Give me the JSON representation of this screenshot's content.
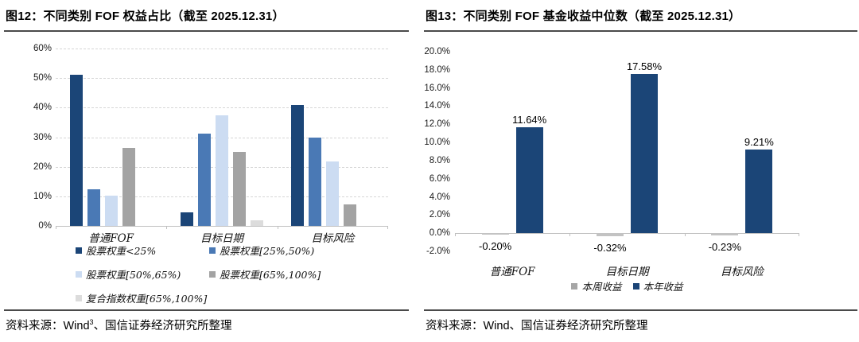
{
  "panels": [
    {
      "title": "图12：不同类别 FOF 权益占比（截至 2025.12.31）",
      "source": {
        "prefix": "资料来源：Wind",
        "sup": "3",
        "suffix": "、国信证券经济研究所整理"
      }
    },
    {
      "title": "图13：不同类别 FOF 基金收益中位数（截至 2025.12.31）",
      "source": {
        "prefix": "资料来源：Wind",
        "sup": "",
        "suffix": "、国信证券经济研究所整理"
      }
    }
  ],
  "chart_data": [
    {
      "type": "bar",
      "title": "不同类别 FOF 权益占比（截至 2025.12.31）",
      "categories": [
        "普通FOF",
        "目标日期",
        "目标风险"
      ],
      "series": [
        {
          "name": "股票权重<25%",
          "color": "#1B4577",
          "values": [
            51.2,
            4.5,
            41.0
          ]
        },
        {
          "name": "股票权重[25%,50%)",
          "color": "#4A79B5",
          "values": [
            12.3,
            31.1,
            29.8
          ]
        },
        {
          "name": "股票权重[50%,65%)",
          "color": "#CCDCF2",
          "values": [
            10.2,
            37.4,
            21.7
          ]
        },
        {
          "name": "股票权重[65%,100%]",
          "color": "#A3A3A3",
          "values": [
            26.3,
            25.0,
            7.3
          ]
        },
        {
          "name": "复合指数权重[65%,100%]",
          "color": "#DCDCDC",
          "values": [
            0.0,
            1.8,
            0.0
          ]
        }
      ],
      "ylim": [
        0,
        60
      ],
      "ytick_values": [
        60,
        50,
        40,
        30,
        20,
        10,
        0
      ],
      "ytick_labels": [
        "60%",
        "50%",
        "40%",
        "30%",
        "20%",
        "10%",
        "0%"
      ],
      "grid": true,
      "data_labels": false,
      "legend_position": "bottom"
    },
    {
      "type": "bar",
      "title": "不同类别 FOF 基金收益中位数（截至 2025.12.31）",
      "categories": [
        "普通FOF",
        "目标日期",
        "目标风险"
      ],
      "series": [
        {
          "name": "本周收益",
          "color": "#C3C3C3",
          "legend_color": "#A6A6A6",
          "values": [
            -0.2,
            -0.32,
            -0.23
          ],
          "labels": [
            "-0.20%",
            "-0.32%",
            "-0.23%"
          ]
        },
        {
          "name": "本年收益",
          "color": "#1B4577",
          "values": [
            11.64,
            17.58,
            9.21
          ],
          "labels": [
            "11.64%",
            "17.58%",
            "9.21%"
          ]
        }
      ],
      "ylim": [
        -2,
        20
      ],
      "ytick_values": [
        20,
        18,
        16,
        14,
        12,
        10,
        8,
        6,
        4,
        2,
        0,
        -2
      ],
      "ytick_labels": [
        "20.0%",
        "18.0%",
        "16.0%",
        "14.0%",
        "12.0%",
        "10.0%",
        "8.0%",
        "6.0%",
        "4.0%",
        "2.0%",
        "0.0%",
        "-2.0%"
      ],
      "grid": false,
      "data_labels": true,
      "legend_position": "bottom"
    }
  ]
}
